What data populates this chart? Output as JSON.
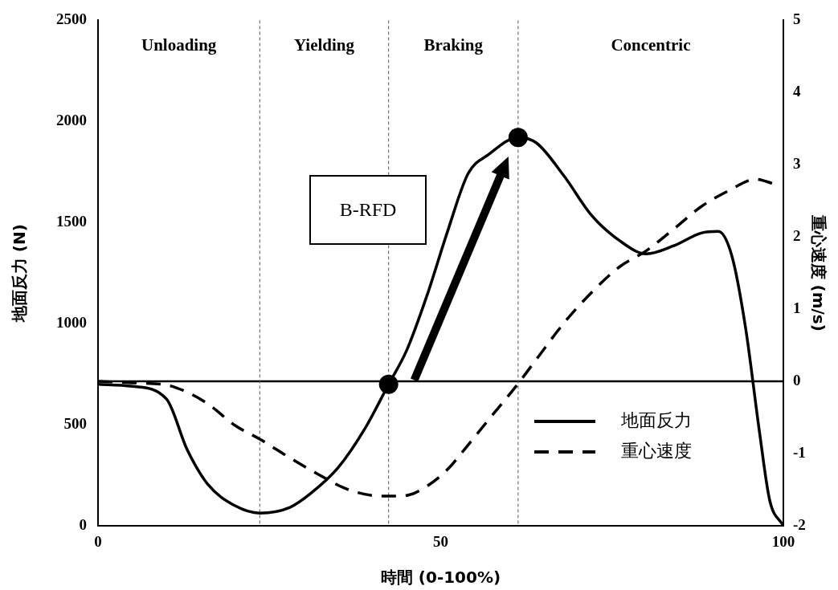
{
  "chart_data": {
    "type": "line",
    "xlabel": "時間 (0-100%)",
    "ylabel": "地面反力 (N)",
    "y2label": "重心速度 (m/s)",
    "xlim": [
      0,
      100
    ],
    "xticks": [
      0,
      50,
      100
    ],
    "ylim": [
      0,
      2500
    ],
    "yticks": [
      0,
      500,
      1000,
      1500,
      2000,
      2500
    ],
    "y2lim": [
      -2,
      5
    ],
    "y2ticks": [
      -2,
      -1,
      0,
      1,
      2,
      3,
      4,
      5
    ],
    "grid": false,
    "legend": "bottom right",
    "series": [
      {
        "name": "地面反力",
        "color": "#000000",
        "line_style": "solid",
        "marker": "none",
        "x": [
          0,
          5,
          10,
          13,
          16,
          20,
          23.6,
          28,
          31,
          35,
          39,
          42.4,
          45,
          48,
          51,
          54,
          57,
          61.3,
          64,
          68,
          72,
          76,
          80,
          84,
          88,
          90.5,
          92.5,
          94.5,
          96.5,
          98,
          100
        ],
        "values": [
          700,
          690,
          627,
          377,
          206,
          99,
          63,
          91,
          159,
          286,
          484,
          700,
          865,
          1139,
          1456,
          1742,
          1837,
          1921,
          1893,
          1730,
          1536,
          1413,
          1345,
          1385,
          1448,
          1456,
          1333,
          976,
          468,
          127,
          0
        ]
      },
      {
        "name": "重心速度",
        "type": "line",
        "axis": "y2",
        "color": "#000000",
        "line_style": "dashed",
        "marker": "none",
        "x": [
          0,
          5,
          10,
          13,
          16,
          20,
          23.6,
          28,
          32,
          36,
          40,
          42.4,
          45,
          48,
          51,
          54,
          57,
          61.3,
          64,
          68,
          72,
          76,
          80,
          84,
          88,
          92,
          96,
          98.5
        ],
        "values": [
          0,
          -0.02,
          -0.05,
          -0.15,
          -0.31,
          -0.61,
          -0.8,
          -1.06,
          -1.28,
          -1.48,
          -1.58,
          -1.59,
          -1.58,
          -1.45,
          -1.22,
          -0.88,
          -0.53,
          -0.03,
          0.31,
          0.81,
          1.23,
          1.58,
          1.81,
          2.11,
          2.42,
          2.64,
          2.8,
          2.74
        ]
      },
      {
        "type": "scatter",
        "color": "#000000",
        "marker": "circle",
        "x": [
          42.4,
          61.3
        ],
        "values": [
          700,
          1921
        ]
      }
    ],
    "ref_lines": [
      {
        "axis": "y2",
        "value": 0
      },
      {
        "axis": "x",
        "value": 23.6,
        "line_style": "dashed",
        "color": "#555555"
      },
      {
        "axis": "x",
        "value": 42.4,
        "line_style": "dashed",
        "color": "#555555"
      },
      {
        "axis": "x",
        "value": 61.3,
        "line_style": "dashed",
        "color": "#555555"
      }
    ],
    "annotations": [
      "Unloading",
      "Yielding",
      "Braking",
      "Concentric",
      "B-RFD"
    ]
  }
}
